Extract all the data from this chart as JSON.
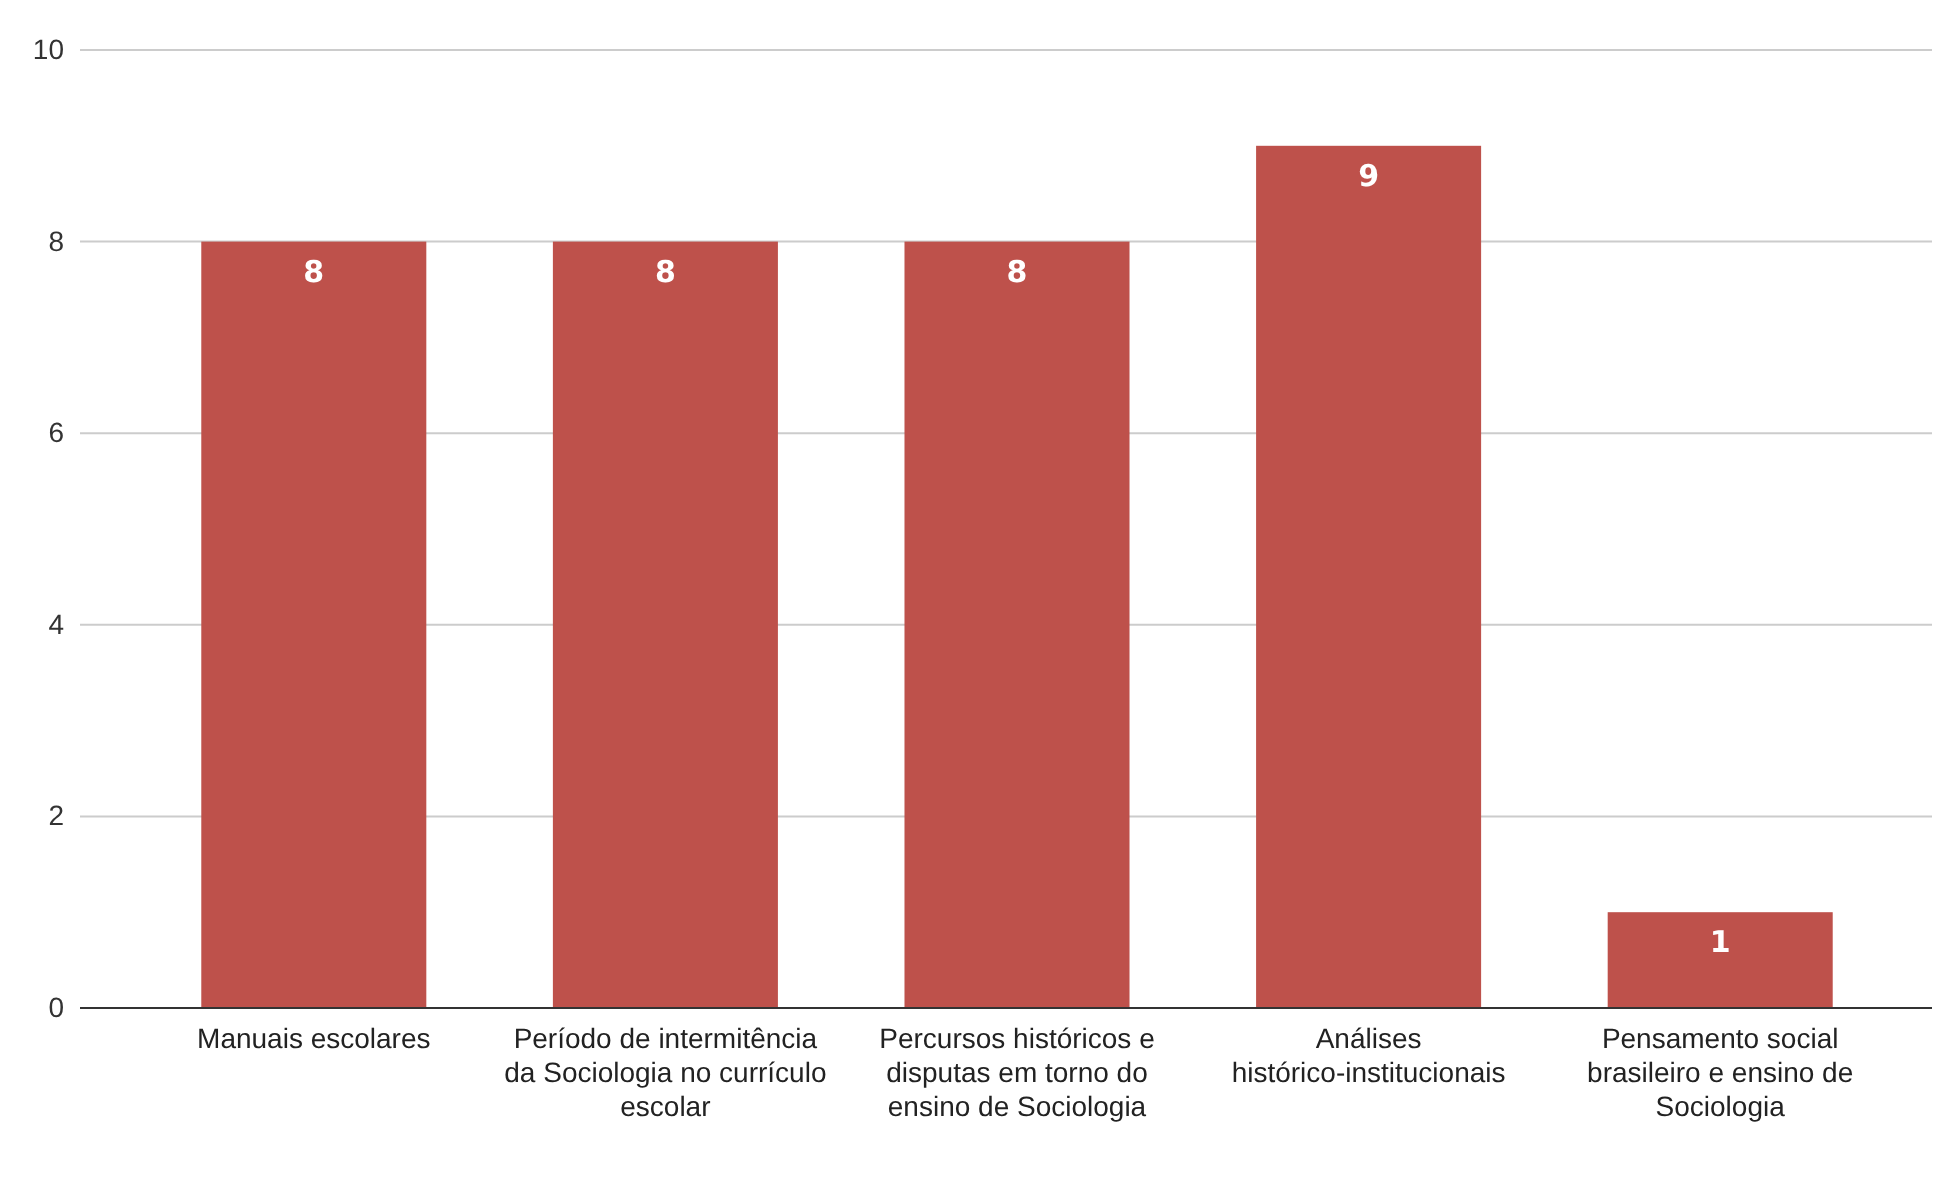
{
  "chart_data": {
    "type": "bar",
    "categories": [
      "Manuais escolares",
      "Período de intermitência da Sociologia no currículo escolar",
      "Percursos históricos e disputas em torno do ensino de Sociologia",
      "Análises histórico-institucionais",
      "Pensamento social brasileiro e ensino de Sociologia"
    ],
    "values": [
      8,
      8,
      8,
      9,
      1
    ],
    "color": "#be514b",
    "ylim": [
      0,
      10
    ],
    "yticks": [
      0,
      2,
      4,
      6,
      8,
      10
    ],
    "grid": "y",
    "data_labels": true
  }
}
